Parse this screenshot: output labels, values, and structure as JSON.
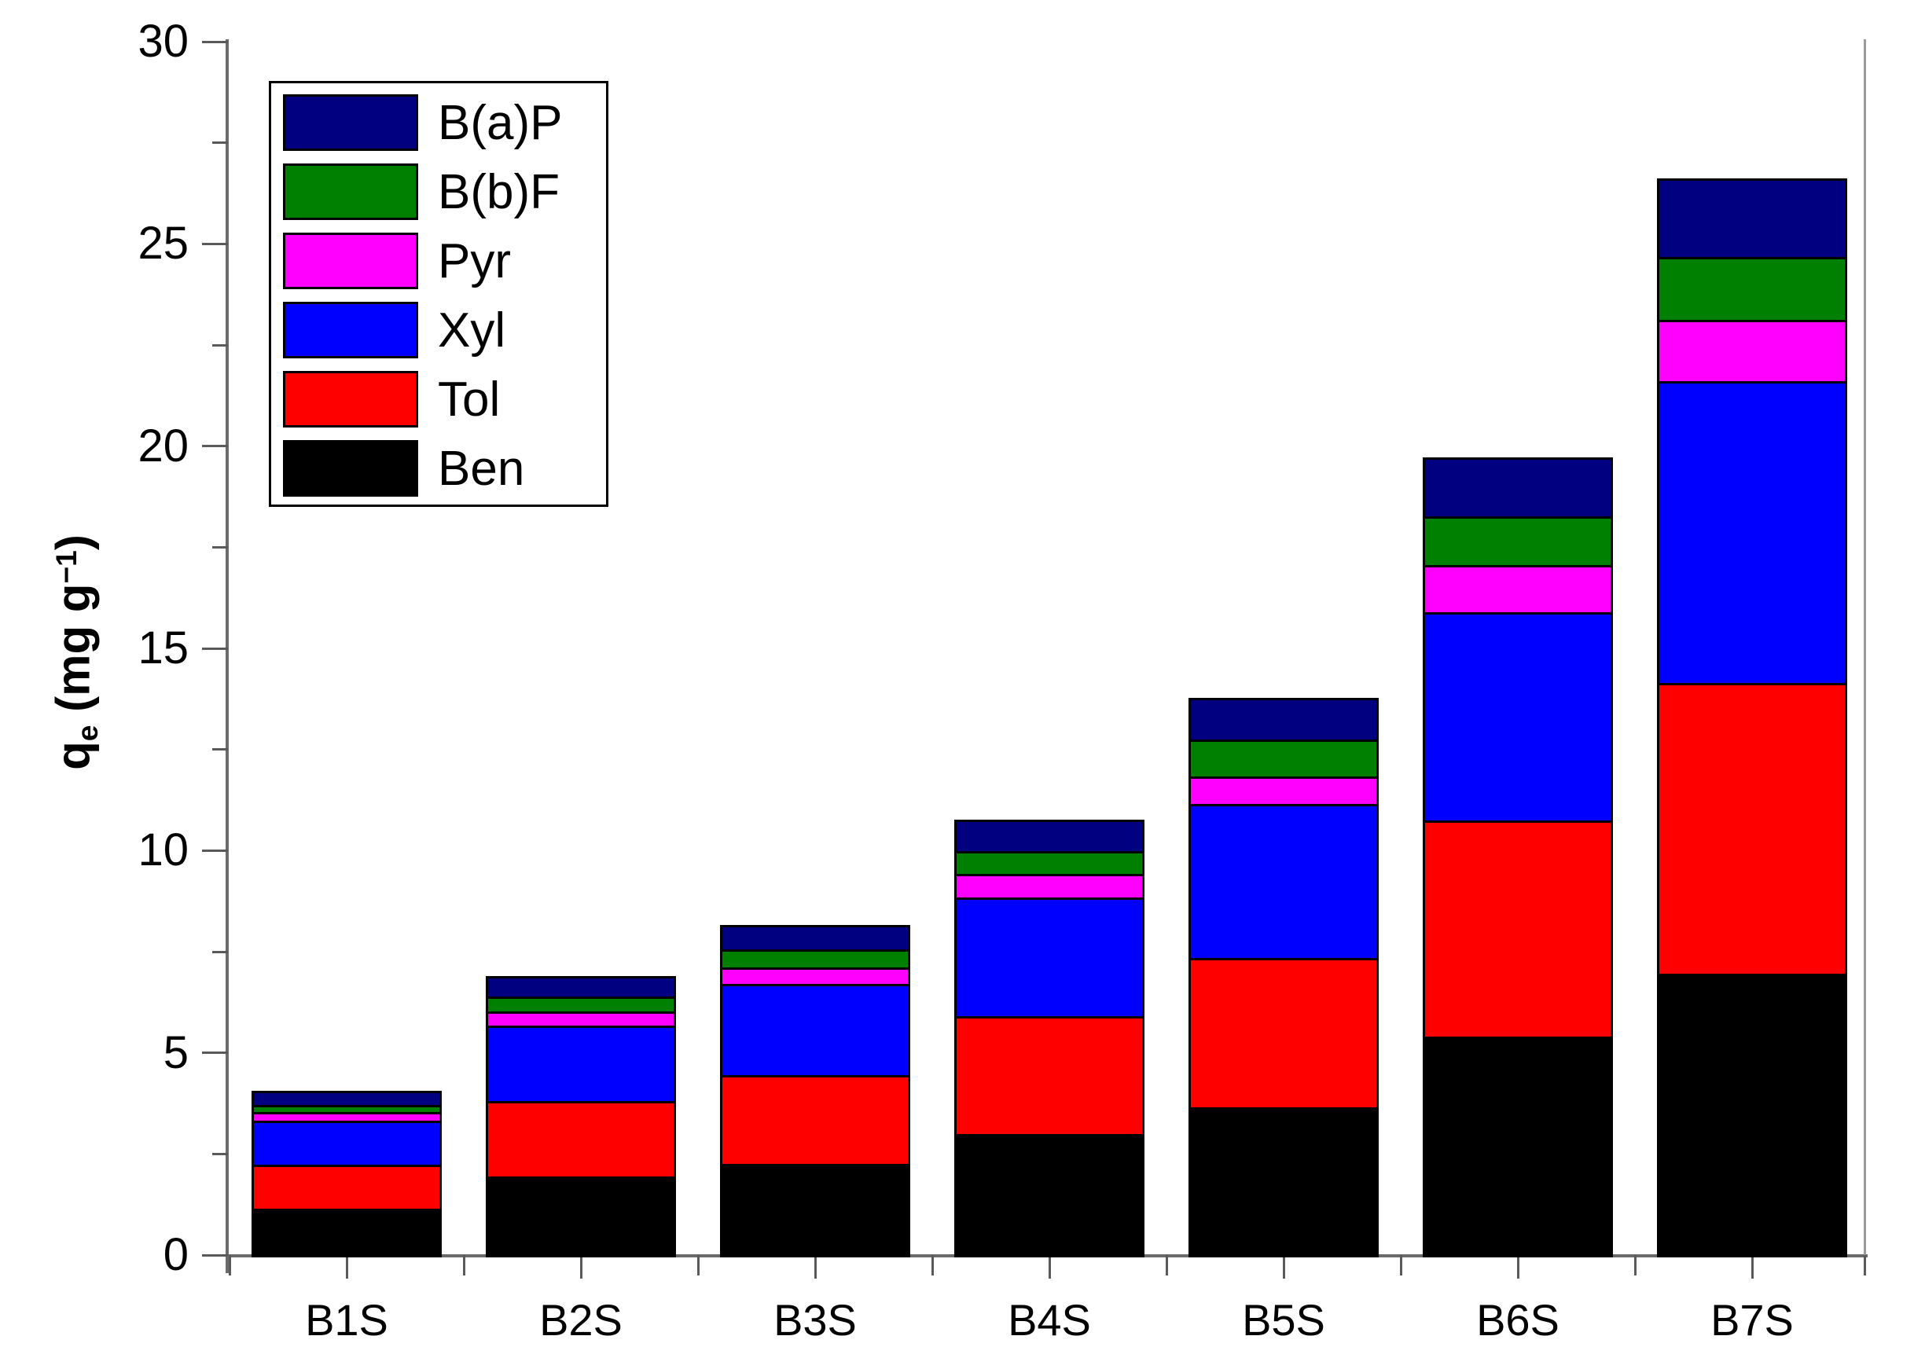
{
  "chart_data": {
    "type": "bar",
    "stacked": true,
    "title": "",
    "categories": [
      "B1S",
      "B2S",
      "B3S",
      "B4S",
      "B5S",
      "B6S",
      "B7S"
    ],
    "series": [
      {
        "name": "Ben",
        "color": "#000000",
        "values": [
          1.15,
          1.95,
          2.25,
          3.0,
          3.65,
          5.4,
          6.95
        ]
      },
      {
        "name": "Tol",
        "color": "#fe0000",
        "values": [
          1.08,
          1.86,
          2.2,
          2.9,
          3.7,
          5.35,
          7.2
        ]
      },
      {
        "name": "Xyl",
        "color": "#0000fe",
        "values": [
          1.1,
          1.86,
          2.25,
          2.95,
          3.8,
          5.15,
          7.45
        ]
      },
      {
        "name": "Pyr",
        "color": "#ff00ff",
        "values": [
          0.2,
          0.36,
          0.42,
          0.58,
          0.68,
          1.15,
          1.52
        ]
      },
      {
        "name": "B(b)F",
        "color": "#008000",
        "values": [
          0.19,
          0.36,
          0.43,
          0.56,
          0.91,
          1.22,
          1.55
        ]
      },
      {
        "name": "B(a)P",
        "color": "#000080",
        "values": [
          0.34,
          0.51,
          0.61,
          0.77,
          1.03,
          1.45,
          1.95
        ]
      }
    ],
    "totals": [
      4.06,
      6.9,
      8.16,
      10.76,
      13.77,
      19.72,
      26.62
    ],
    "legend": {
      "position": "top-left",
      "entries_top_to_bottom": [
        "B(a)P",
        "B(b)F",
        "Pyr",
        "Xyl",
        "Tol",
        "Ben"
      ]
    },
    "y_axis": {
      "label_parts": {
        "base": "q",
        "sub": "e",
        "mid": " (mg g",
        "sup": "−1",
        "end": ")"
      },
      "range": [
        0,
        30
      ],
      "major_ticks": [
        0,
        5,
        10,
        15,
        20,
        25,
        30
      ],
      "tick_labels": [
        "0",
        "5",
        "10",
        "15",
        "20",
        "25",
        "30"
      ],
      "minor_step": 2.5
    },
    "x_axis": {
      "tick_labels": [
        "B1S",
        "B2S",
        "B3S",
        "B4S",
        "B5S",
        "B6S",
        "B7S"
      ]
    },
    "grid": false
  }
}
